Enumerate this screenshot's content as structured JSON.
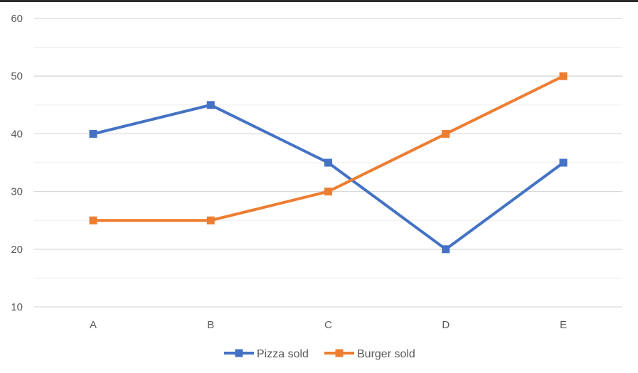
{
  "colors": {
    "pizza": "#4472C4",
    "burger": "#ED7D31",
    "major_grid": "#D9D9D9",
    "minor_grid": "#EDEDED",
    "tick_text": "#595959"
  },
  "chart_data": {
    "type": "line",
    "title": "",
    "xlabel": "",
    "ylabel": "",
    "categories": [
      "A",
      "B",
      "C",
      "D",
      "E"
    ],
    "series": [
      {
        "name": "Pizza sold",
        "color": "#4472C4",
        "values": [
          40,
          45,
          35,
          20,
          35
        ]
      },
      {
        "name": "Burger sold",
        "color": "#ED7D31",
        "values": [
          25,
          25,
          30,
          40,
          50
        ]
      }
    ],
    "ylim": [
      10,
      60
    ],
    "yticks": [
      10,
      20,
      30,
      40,
      50,
      60
    ],
    "grid": true,
    "minor_grid": true,
    "marker": "square",
    "legend": "bottom-center"
  }
}
